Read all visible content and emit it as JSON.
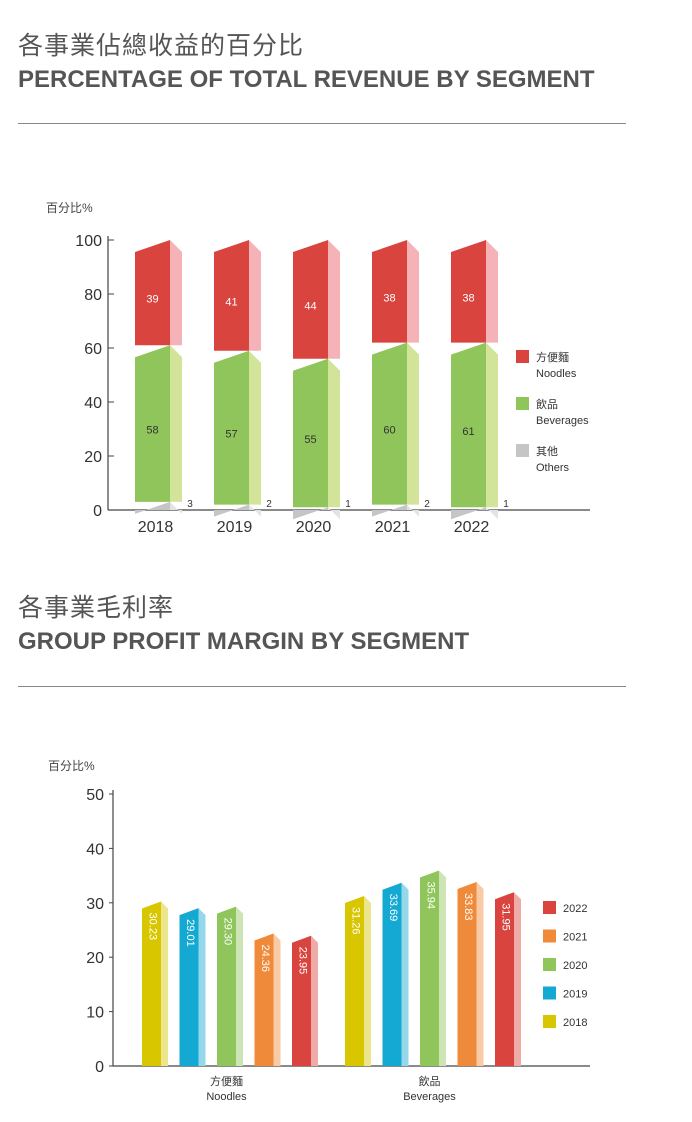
{
  "section1": {
    "title_zh": "各事業佔總收益的百分比",
    "title_en": "PERCENTAGE OF TOTAL REVENUE BY SEGMENT"
  },
  "section2": {
    "title_zh": "各事業毛利率",
    "title_en": "GROUP PROFIT MARGIN BY SEGMENT"
  },
  "colors": {
    "noodles": "#d9453e",
    "noodles_side": "#f5b3b8",
    "beverages": "#8fc55a",
    "beverages_side": "#d2e49a",
    "others": "#c5c5c7",
    "others_side": "#e3e3e5",
    "y2018": "#d8c600",
    "y2019": "#14a9d2",
    "y2020": "#8fc55a",
    "y2021": "#ef8a3a",
    "y2022": "#d9453e"
  },
  "chart_data": [
    {
      "type": "bar",
      "stacked": true,
      "ylabel": "百分比%",
      "ylim": [
        0,
        100
      ],
      "yticks": [
        0,
        20,
        40,
        60,
        80,
        100
      ],
      "categories": [
        "2018",
        "2019",
        "2020",
        "2021",
        "2022"
      ],
      "series": [
        {
          "name_zh": "其他",
          "name_en": "Others",
          "values": [
            3,
            2,
            1,
            2,
            1
          ]
        },
        {
          "name_zh": "飲品",
          "name_en": "Beverages",
          "values": [
            58,
            57,
            55,
            60,
            61
          ]
        },
        {
          "name_zh": "方便麵",
          "name_en": "Noodles",
          "values": [
            39,
            41,
            44,
            38,
            38
          ]
        }
      ],
      "legend_order": [
        "Noodles",
        "Beverages",
        "Others"
      ],
      "legend_position": "right"
    },
    {
      "type": "bar",
      "ylabel": "百分比%",
      "ylim": [
        0,
        50
      ],
      "yticks": [
        0,
        10,
        20,
        30,
        40,
        50
      ],
      "groups": [
        {
          "name_zh": "方便麵",
          "name_en": "Noodles"
        },
        {
          "name_zh": "飲品",
          "name_en": "Beverages"
        }
      ],
      "series": [
        {
          "name": "2018",
          "values": [
            30.23,
            31.26
          ]
        },
        {
          "name": "2019",
          "values": [
            29.01,
            33.69
          ]
        },
        {
          "name": "2020",
          "values": [
            29.3,
            35.94
          ]
        },
        {
          "name": "2021",
          "values": [
            24.36,
            33.83
          ]
        },
        {
          "name": "2022",
          "values": [
            23.95,
            31.95
          ]
        }
      ],
      "value_labels": [
        [
          "30.23",
          "29.01",
          "29.30",
          "24.36",
          "23.95"
        ],
        [
          "31.26",
          "33.69",
          "35.94",
          "33.83",
          "31.95"
        ]
      ],
      "legend_order": [
        "2022",
        "2021",
        "2020",
        "2019",
        "2018"
      ],
      "legend_position": "right"
    }
  ]
}
